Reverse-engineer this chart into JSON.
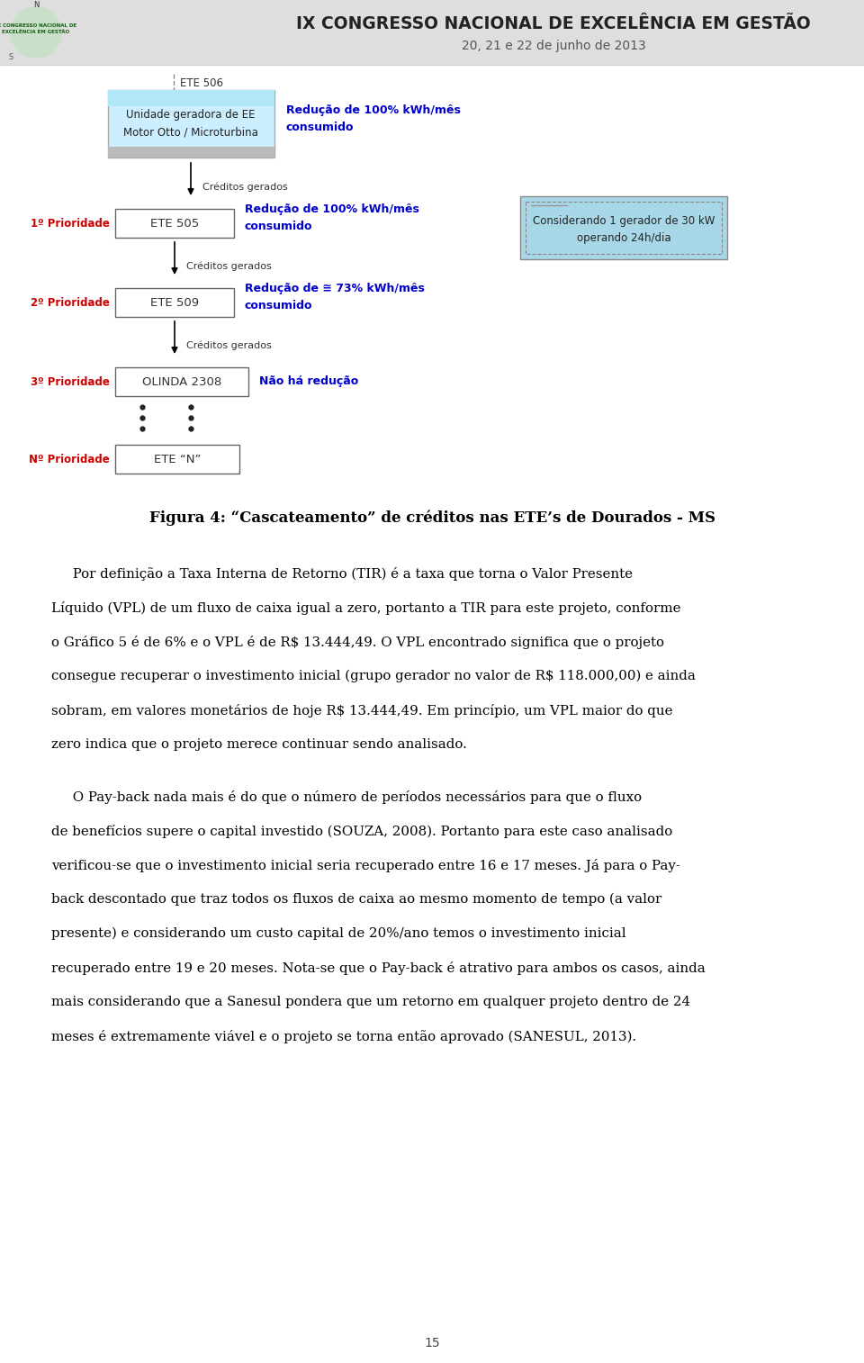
{
  "bg_color": "#ffffff",
  "header_bg": "#dedede",
  "header_title": "IX CONGRESSO NACIONAL DE EXCELÊNCIA EM GESTÃO",
  "header_subtitle": "20, 21 e 22 de junho de 2013",
  "page_number": "15",
  "figure_title": "Figura 4: “Cascateamento” de créditos nas ETE’s de Dourados - MS",
  "diagram": {
    "ete506_label": "ETE 506",
    "ete506_box_text": "Unidade geradora de EE\nMotor Otto / Microturbina",
    "ete506_arrow_text": "Redução de 100% kWh/mês\nconsumido",
    "creditos1": "Créditos gerados",
    "prioridade1_label": "1º Prioridade",
    "ete505_label": "ETE 505",
    "ete505_arrow_text": "Redução de 100% kWh/mês\nconsumido",
    "creditos2": "Créditos gerados",
    "prioridade2_label": "2º Prioridade",
    "ete509_label": "ETE 509",
    "ete509_arrow_text": "Redução de ≅ 73% kWh/mês\nconsumido",
    "creditos3": "Créditos gerados",
    "prioridade3_label": "3º Prioridade",
    "olinda_label": "OLINDA 2308",
    "olinda_arrow_text": "Não há redução",
    "nprioridade_label": "Nº Prioridade",
    "eten_label": "ETE “N”",
    "info_box_text": "Considerando 1 gerador de 30 kW\noperando 24h/dia"
  },
  "para1_lines": [
    "     Por definição a Taxa Interna de Retorno (TIR) é a taxa que torna o Valor Presente",
    "Líquido (VPL) de um fluxo de caixa igual a zero, portanto a TIR para este projeto, conforme",
    "o Gráfico 5 é de 6% e o VPL é de R$ 13.444,49. O VPL encontrado significa que o projeto",
    "consegue recuperar o investimento inicial (grupo gerador no valor de R$ 118.000,00) e ainda",
    "sobram, em valores monetários de hoje R$ 13.444,49. Em princípio, um VPL maior do que",
    "zero indica que o projeto merece continuar sendo analisado."
  ],
  "para2_lines": [
    "     O Pay-back nada mais é do que o número de períodos necessários para que o fluxo",
    "de benefícios supere o capital investido (SOUZA, 2008). Portanto para este caso analisado",
    "verificou-se que o investimento inicial seria recuperado entre 16 e 17 meses. Já para o Pay-",
    "back descontado que traz todos os fluxos de caixa ao mesmo momento de tempo (a valor",
    "presente) e considerando um custo capital de 20%/ano temos o investimento inicial",
    "recuperado entre 19 e 20 meses. Nota-se que o Pay-back é atrativo para ambos os casos, ainda",
    "mais considerando que a Sanesul pondera que um retorno em qualquer projeto dentro de 24",
    "meses é extremamente viável e o projeto se torna então aprovado (SANESUL, 2013)."
  ],
  "arrow_color": "#000000",
  "prioridade_color": "#cc0000",
  "reduction_color": "#0000cc",
  "box_edge_color": "#666666",
  "text_color": "#000000",
  "creditos_color": "#333333"
}
